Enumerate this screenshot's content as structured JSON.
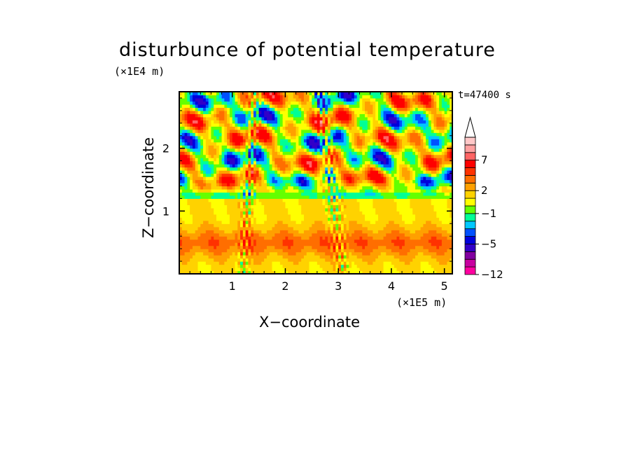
{
  "chart_data": {
    "type": "heatmap",
    "title": "disturbunce of potential temperature",
    "xlabel": "X−coordinate",
    "ylabel": "Z−coordinate",
    "x_unit": "(×1E5 m)",
    "y_unit": "(×1E4 m)",
    "annotation": "t=47400 s",
    "xlim": [
      0,
      5.15
    ],
    "ylim": [
      0,
      2.9
    ],
    "x_ticks": [
      1,
      2,
      3,
      4,
      5
    ],
    "y_ticks": [
      1,
      2
    ],
    "colorbar": {
      "levels": [
        -12,
        -11,
        -9,
        -7,
        -5,
        -4,
        -3,
        -2,
        -1,
        0,
        1,
        2,
        3,
        4,
        5,
        7,
        8,
        9
      ],
      "labeled_levels": [
        -12,
        -5,
        -1,
        2,
        7
      ],
      "colors": [
        "#ff00a0",
        "#c800a0",
        "#8200a0",
        "#3200c8",
        "#0000dc",
        "#0050ff",
        "#00c8ff",
        "#00ff96",
        "#64ff00",
        "#ffff00",
        "#ffd200",
        "#ffa000",
        "#ff6e00",
        "#ff3200",
        "#ff0000",
        "#ff6464",
        "#ffa0a0",
        "#ffc8c8"
      ],
      "extend": "max"
    },
    "grid": false
  }
}
